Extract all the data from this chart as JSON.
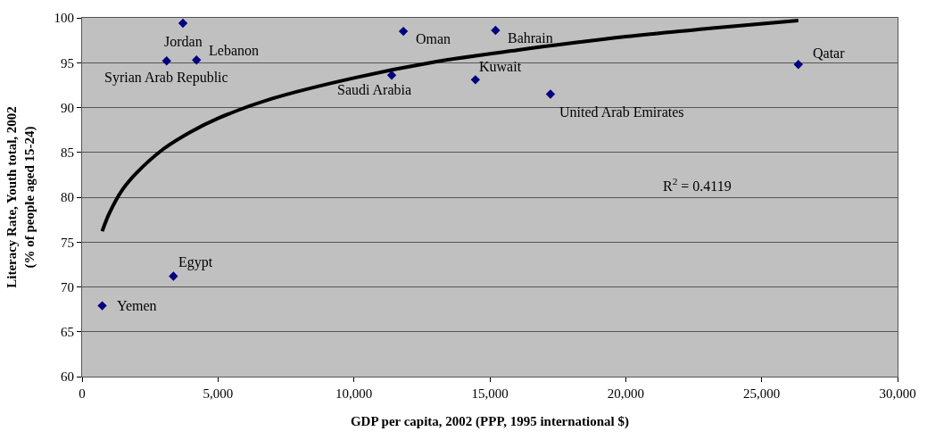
{
  "chart_data": {
    "type": "scatter",
    "xlabel": "GDP per capita, 2002 (PPP, 1995 international $)",
    "ylabel": "Literacy Rate, Youth total, 2002\n(% of people aged 15-24)",
    "xlim": [
      0,
      30000
    ],
    "xticks": [
      {
        "value": 0,
        "label": "0"
      },
      {
        "value": 5000,
        "label": "5,000"
      },
      {
        "value": 10000,
        "label": "10,000"
      },
      {
        "value": 15000,
        "label": "15,000"
      },
      {
        "value": 20000,
        "label": "20,000"
      },
      {
        "value": 25000,
        "label": "25,000"
      },
      {
        "value": 30000,
        "label": "30,000"
      }
    ],
    "ylim": [
      60,
      100
    ],
    "yticks": [
      60,
      65,
      70,
      75,
      80,
      85,
      90,
      95,
      100
    ],
    "grid": "y",
    "series": [
      {
        "marker": "diamond",
        "color": "#000080",
        "x": [
          3710,
          3110,
          4210,
          11820,
          15210,
          11390,
          14470,
          26350,
          17230,
          3360,
          740
        ],
        "values": [
          99.4,
          95.2,
          95.3,
          98.5,
          98.6,
          93.6,
          93.1,
          94.8,
          91.5,
          71.2,
          67.9
        ]
      },
      {
        "type": "line",
        "color": "#000000",
        "line_style": "solid",
        "x": [
          740,
          1000,
          1500,
          2000,
          3000,
          4000,
          5000,
          7000,
          10000,
          13000,
          16000,
          20000,
          23000,
          26350
        ],
        "values": [
          76.2,
          78.2,
          80.9,
          82.7,
          85.4,
          87.3,
          88.8,
          91.0,
          93.3,
          95.1,
          96.4,
          97.9,
          98.8,
          99.7
        ]
      }
    ],
    "annotations": [
      {
        "text": "Jordan",
        "x": 3710,
        "y": 99.4
      },
      {
        "text": "Syrian Arab Republic",
        "x": 3110,
        "y": 95.2
      },
      {
        "text": "Lebanon",
        "x": 4210,
        "y": 95.3
      },
      {
        "text": "Oman",
        "x": 11820,
        "y": 98.5
      },
      {
        "text": "Bahrain",
        "x": 15210,
        "y": 98.6
      },
      {
        "text": "Saudi Arabia",
        "x": 11390,
        "y": 93.6
      },
      {
        "text": "Kuwait",
        "x": 14470,
        "y": 93.1
      },
      {
        "text": "Qatar",
        "x": 26350,
        "y": 94.8
      },
      {
        "text": "United Arab Emirates",
        "x": 17230,
        "y": 91.5
      },
      {
        "text": "Egypt",
        "x": 3360,
        "y": 71.2
      },
      {
        "text": "Yemen",
        "x": 740,
        "y": 67.9
      },
      "R$^{2}$ = 0.4119"
    ]
  }
}
